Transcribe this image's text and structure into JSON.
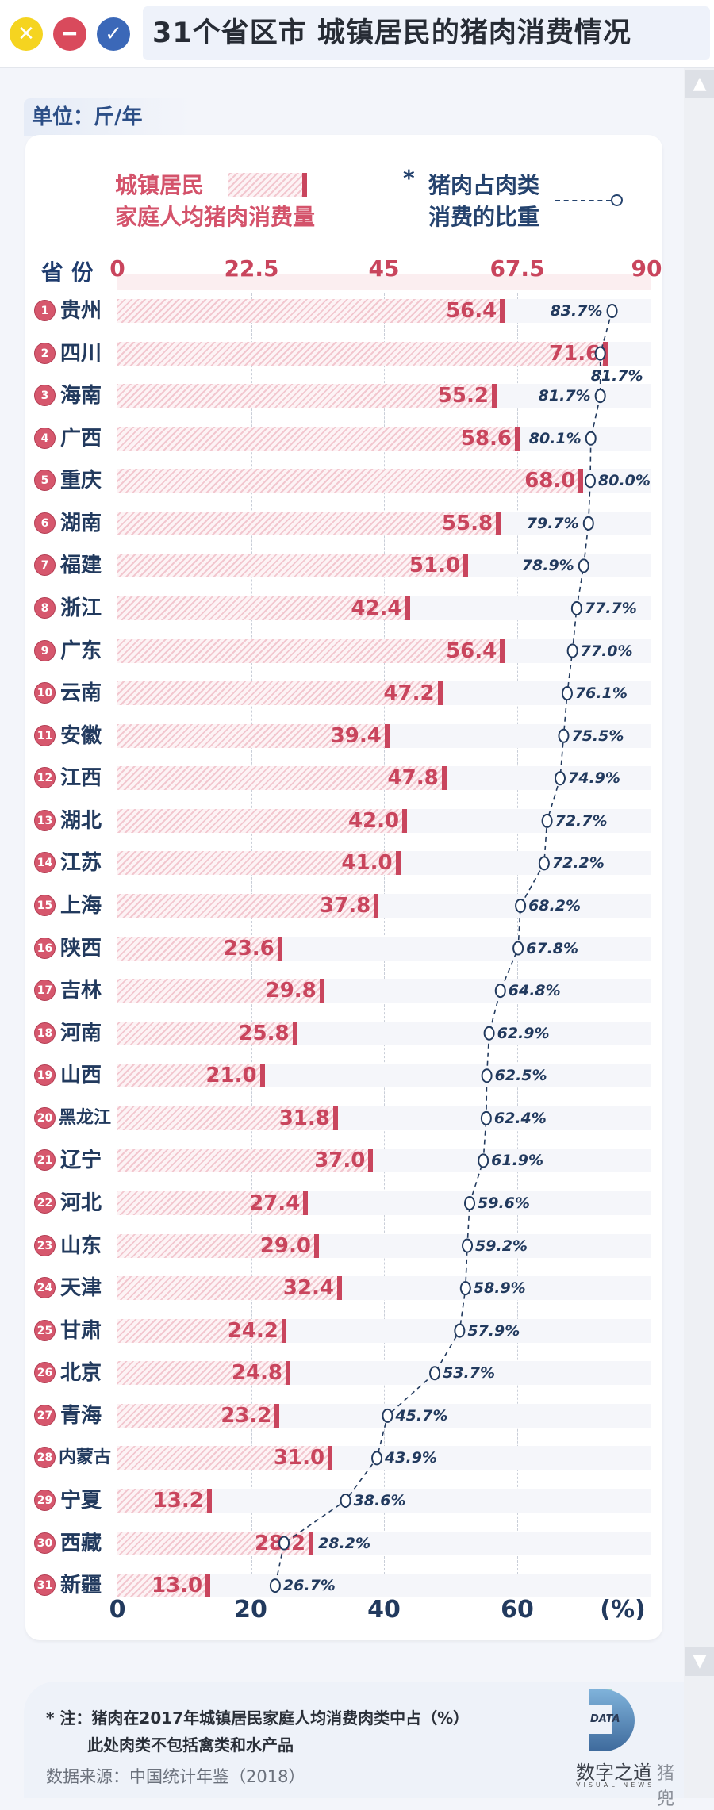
{
  "window": {
    "title": "31个省区市 城镇居民的猪肉消费情况",
    "buttons": [
      {
        "icon": "close-icon",
        "glyph": "✕",
        "color": "#f5d420"
      },
      {
        "icon": "minimize-icon",
        "glyph": "━",
        "color": "#d94a5c"
      },
      {
        "icon": "check-icon",
        "glyph": "✓",
        "color": "#3b68b8"
      }
    ]
  },
  "scrollbar": {
    "up": "▲",
    "down": "▼"
  },
  "unit_label": "单位：斤/年",
  "legend": {
    "bar_line1": "城镇居民",
    "bar_line2": "家庭人均猪肉消费量",
    "star": "*",
    "dot_line1": "猪肉占肉类",
    "dot_line2": "消费的比重"
  },
  "chart_data": {
    "type": "bar",
    "title": "31个省区市 城镇居民的猪肉消费情况",
    "category_header": "省 份",
    "unit": "单位：斤/年",
    "top_axis": {
      "ticks": [
        "0",
        "22.5",
        "45",
        "67.5",
        "90"
      ],
      "range": [
        0,
        90
      ]
    },
    "bottom_axis": {
      "ticks": [
        "0",
        "20",
        "40",
        "60"
      ],
      "unit_label": "(%)",
      "range": [
        0,
        80
      ]
    },
    "grid": true,
    "categories": [
      "贵州",
      "四川",
      "海南",
      "广西",
      "重庆",
      "湖南",
      "福建",
      "浙江",
      "广东",
      "云南",
      "安徽",
      "江西",
      "湖北",
      "江苏",
      "上海",
      "陕西",
      "吉林",
      "河南",
      "山西",
      "黑龙江",
      "辽宁",
      "河北",
      "山东",
      "天津",
      "甘肃",
      "北京",
      "青海",
      "内蒙古",
      "宁夏",
      "西藏",
      "新疆"
    ],
    "series": [
      {
        "name": "城镇居民家庭人均猪肉消费量",
        "type": "bar",
        "color": "#c9455d",
        "values": [
          56.4,
          71.6,
          55.2,
          58.6,
          68.0,
          55.8,
          51.0,
          42.4,
          56.4,
          47.2,
          39.4,
          47.8,
          42.0,
          41.0,
          37.8,
          23.6,
          29.8,
          25.8,
          21.0,
          31.8,
          37.0,
          27.4,
          29.0,
          32.4,
          24.2,
          24.8,
          23.2,
          31.0,
          13.2,
          28.2,
          13.0
        ],
        "labels": [
          "56.4",
          "71.6",
          "55.2",
          "58.6",
          "68.0",
          "55.8",
          "51.0",
          "42.4",
          "56.4",
          "47.2",
          "39.4",
          "47.8",
          "42.0",
          "41.0",
          "37.8",
          "23.6",
          "29.8",
          "25.8",
          "21.0",
          "31.8",
          "37.0",
          "27.4",
          "29.0",
          "32.4",
          "24.2",
          "24.8",
          "23.2",
          "31.0",
          "13.2",
          "28.2",
          "13.0"
        ]
      },
      {
        "name": "猪肉占肉类消费的比重",
        "type": "line",
        "color": "#223a5e",
        "values": [
          83.7,
          81.7,
          81.7,
          80.1,
          80.0,
          79.7,
          78.9,
          77.7,
          77.0,
          76.1,
          75.5,
          74.9,
          72.7,
          72.2,
          68.2,
          67.8,
          64.8,
          62.9,
          62.5,
          62.4,
          61.9,
          59.6,
          59.2,
          58.9,
          57.9,
          53.7,
          45.7,
          43.9,
          38.6,
          28.2,
          26.7
        ],
        "labels": [
          "83.7%",
          "81.7%",
          "81.7%",
          "80.1%",
          "80.0%",
          "79.7%",
          "78.9%",
          "77.7%",
          "77.0%",
          "76.1%",
          "75.5%",
          "74.9%",
          "72.7%",
          "72.2%",
          "68.2%",
          "67.8%",
          "64.8%",
          "62.9%",
          "62.5%",
          "62.4%",
          "61.9%",
          "59.6%",
          "59.2%",
          "58.9%",
          "57.9%",
          "53.7%",
          "45.7%",
          "43.9%",
          "38.6%",
          "28.2%",
          "26.7%"
        ]
      }
    ]
  },
  "footer": {
    "note_line1": "* 注：猪肉在2017年城镇居民家庭人均消费肉类中占（%）",
    "note_line2": "此处肉类不包括禽类和水产品",
    "source": "数据来源：中国统计年鉴（2018）",
    "logo_text": "DATA",
    "brand": "数字之道",
    "brand_sub": "VISUAL NEWS",
    "watermark": "猪兜"
  }
}
